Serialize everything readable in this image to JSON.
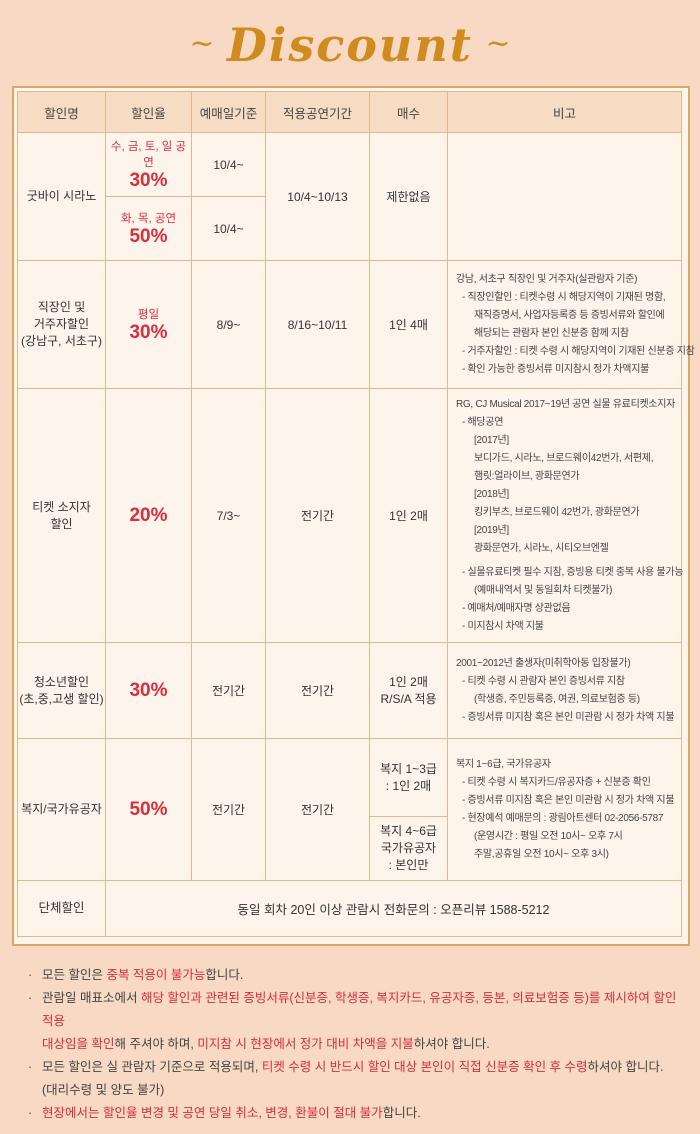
{
  "header": {
    "title": "Discount"
  },
  "table": {
    "headers": [
      "할인명",
      "할인율",
      "예매일기준",
      "적용공연기간",
      "매수",
      "비고"
    ],
    "rows": {
      "goodbye": {
        "name": "굿바이 시라노",
        "a_days": "수, 금, 토, 일 공연",
        "a_pct": "30%",
        "a_date": "10/4~",
        "b_days": "화, 목, 공연",
        "b_pct": "50%",
        "b_date": "10/4~",
        "period": "10/4~10/13",
        "count": "제한없음",
        "note": ""
      },
      "worker": {
        "name_lines": [
          "직장인 및",
          "거주자할인",
          "(강남구, 서초구)"
        ],
        "days": "평일",
        "pct": "30%",
        "date": "8/9~",
        "period": "8/16~10/11",
        "count": "1인 4매",
        "note": [
          "강남, 서초구 직장인 및 거주자(실관람자 기준)",
          "- 직장인할인 : 티켓수령 시 해당지역이 기재된 명함,",
          "재직증명서, 사업자등록증 등 증빙서류와 할인에",
          "해당되는 관람자 본인 신분증 함께 지참",
          "- 거주자할인 : 티켓 수령 시 해당지역이 기재된 신분증 지참",
          "- 확인 가능한 증빙서류 미지참시 정가 차액지불"
        ]
      },
      "ticket": {
        "name_lines": [
          "티켓 소지자",
          "할인"
        ],
        "pct": "20%",
        "date": "7/3~",
        "period": "전기간",
        "count": "1인 2매",
        "note": [
          "RG, CJ Musical 2017~19년 공연 실물 유료티켓소지자",
          "- 해당공연",
          "[2017년]",
          "보디가드, 시라노, 브로드웨이42번가, 서편제,",
          "햄릿:얼라이브, 광화문연가",
          "[2018년]",
          "킹키부츠, 브로드웨이 42번가, 광화문연가",
          "[2019년]",
          "광화문연가, 시라노, 시티오브엔젤",
          "- 실물유료티켓 필수 지참, 증빙용 티켓 중복 사용 불가능",
          "(예매내역서 및 동일회차 티켓불가)",
          "- 예매처/예매자명 상관없음",
          "- 미지참시 차액 지불"
        ]
      },
      "youth": {
        "name_lines": [
          "청소년할인",
          "(초,중,고생 할인)"
        ],
        "pct": "30%",
        "date": "전기간",
        "period": "전기간",
        "count_lines": [
          "1인 2매",
          "R/S/A 적용"
        ],
        "note": [
          "2001~2012년 출생자(미취학아동 입장불가)",
          "- 티켓 수령 시 관람자 본인 증빙서류 지참",
          "(학생증, 주민등록증, 여권, 의료보험증 등)",
          "- 증빙서류 미지참 혹은 본인 미관람 시 정가 차액 지불"
        ]
      },
      "welfare": {
        "name": "복지/국가유공자",
        "pct": "50%",
        "date": "전기간",
        "period": "전기간",
        "count_a": [
          "복지 1~3급",
          ": 1인 2매"
        ],
        "count_b": [
          "복지 4~6급",
          "국가유공자",
          ": 본인만"
        ],
        "note": [
          "복지 1~6급, 국가유공자",
          "- 티켓 수령 시 복지카드/유공자증 + 신분증 확인",
          "- 증빙서류 미지참 혹은 본인 미관람 시 정가 차액 지불",
          "- 현장예석 예매문의 : 광림아트센터 02-2056-5787",
          "(운영시간 : 평일 오전 10시~ 오후 7시",
          "주말,공휴일 오전 10시~ 오후 3시)"
        ]
      },
      "group": {
        "name": "단체할인",
        "text": "동일 회차 20인 이상 관람시 전화문의 : 오픈리뷰 1588-5212"
      }
    }
  },
  "notices": {
    "n1": {
      "a": "모든 할인은 ",
      "b": "중복 적용이 불가능",
      "c": "합니다."
    },
    "n2": {
      "a": "관람일 매표소에서 ",
      "b": "해당 할인과 관련된 증빙서류(신분증, 학생증, 복지카드, 유공자증, 등본, 의료보험증 등)를 제시하여 할인 적용",
      "c": "대상임을 확인",
      "d": "해 주셔야 하며, ",
      "e": "미지참 시 현장에서 정가 대비 차액을 지불",
      "f": "하셔야 합니다."
    },
    "n3": {
      "a": "모든 할인은 실 관람자 기준으로 적용되며, ",
      "b": "티켓 수령 시 반드시 할인 대상 본인이 직접 신분증 확인 후 수령",
      "c": "하셔야 합니다.",
      "d": "(대리수령 및 양도 불가)"
    },
    "n4": {
      "a": "현장에서는 할인율 변경 및 공연 당일 취소, 변경, 환불이 절대 불가",
      "b": "합니다."
    }
  },
  "colors": {
    "accent": "#d72d3c",
    "gold": "#d08a1e",
    "background": "#f7d9c4"
  }
}
